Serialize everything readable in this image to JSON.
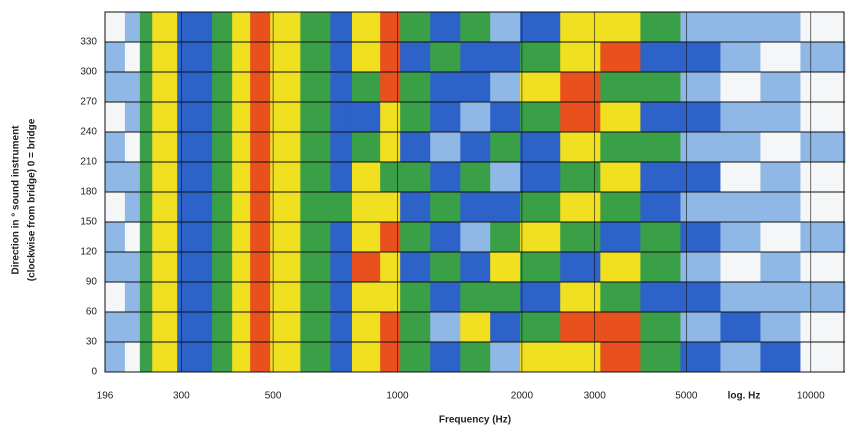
{
  "chart_data": {
    "type": "heatmap",
    "xlabel": "Frequency (Hz)",
    "ylabel": [
      "Direction in ° sound instrument",
      "(clockwise from bridge) 0 = bridge"
    ],
    "x_annotation": "log. Hz",
    "xscale": "log",
    "xlim": [
      196,
      12100
    ],
    "xticks": [
      196,
      300,
      500,
      1000,
      2000,
      3000,
      5000,
      10000
    ],
    "ylim": [
      0,
      360
    ],
    "yticks": [
      0,
      30,
      60,
      90,
      120,
      150,
      180,
      210,
      240,
      270,
      300,
      330
    ],
    "grid": true,
    "xbins": [
      196,
      219,
      238,
      255,
      293,
      356,
      398,
      440,
      492,
      582,
      688,
      776,
      908,
      1015,
      1200,
      1419,
      1676,
      1980,
      2476,
      3096,
      3870,
      4838,
      6045,
      7554,
      9440,
      12100
    ],
    "ybins": [
      0,
      30,
      60,
      90,
      120,
      150,
      180,
      210,
      240,
      270,
      300,
      330,
      360
    ],
    "level_colors": [
      "#f4f6f8",
      "#8fb8e6",
      "#2d62c8",
      "#3aa048",
      "#f0e020",
      "#e8501e"
    ],
    "z": [
      [
        1,
        0,
        3,
        4,
        2,
        3,
        4,
        5,
        4,
        3,
        2,
        4,
        5,
        3,
        2,
        3,
        1,
        4,
        4,
        5,
        3,
        2,
        1,
        2,
        0
      ],
      [
        1,
        1,
        3,
        4,
        2,
        3,
        4,
        5,
        4,
        3,
        2,
        4,
        5,
        3,
        1,
        4,
        2,
        3,
        5,
        5,
        3,
        1,
        2,
        1,
        0
      ],
      [
        0,
        1,
        3,
        4,
        2,
        3,
        4,
        5,
        4,
        3,
        2,
        4,
        4,
        3,
        2,
        3,
        3,
        2,
        4,
        3,
        2,
        2,
        1,
        1,
        1
      ],
      [
        1,
        1,
        3,
        4,
        2,
        3,
        4,
        5,
        4,
        3,
        2,
        5,
        4,
        2,
        3,
        2,
        4,
        3,
        2,
        4,
        3,
        1,
        0,
        1,
        0
      ],
      [
        1,
        0,
        3,
        4,
        2,
        3,
        4,
        5,
        4,
        3,
        2,
        4,
        5,
        3,
        2,
        1,
        3,
        4,
        3,
        2,
        3,
        2,
        1,
        0,
        1
      ],
      [
        0,
        1,
        3,
        4,
        2,
        3,
        4,
        5,
        4,
        3,
        3,
        4,
        4,
        2,
        3,
        2,
        2,
        3,
        4,
        3,
        2,
        1,
        1,
        1,
        0
      ],
      [
        1,
        1,
        3,
        4,
        2,
        3,
        4,
        5,
        4,
        3,
        2,
        4,
        3,
        3,
        2,
        3,
        1,
        2,
        3,
        4,
        2,
        2,
        0,
        1,
        0
      ],
      [
        1,
        0,
        3,
        4,
        2,
        3,
        4,
        5,
        4,
        3,
        2,
        3,
        4,
        2,
        1,
        2,
        3,
        2,
        4,
        3,
        3,
        1,
        1,
        0,
        1
      ],
      [
        0,
        1,
        3,
        4,
        2,
        3,
        4,
        5,
        4,
        3,
        2,
        2,
        4,
        3,
        2,
        1,
        2,
        3,
        5,
        4,
        2,
        2,
        1,
        1,
        0
      ],
      [
        1,
        1,
        3,
        4,
        2,
        3,
        4,
        5,
        4,
        3,
        2,
        3,
        5,
        3,
        2,
        2,
        1,
        4,
        5,
        3,
        3,
        1,
        0,
        1,
        0
      ],
      [
        1,
        0,
        3,
        4,
        2,
        3,
        4,
        5,
        4,
        3,
        2,
        4,
        5,
        2,
        3,
        2,
        2,
        3,
        4,
        5,
        2,
        2,
        1,
        0,
        1
      ],
      [
        0,
        1,
        3,
        4,
        2,
        3,
        4,
        5,
        4,
        3,
        2,
        4,
        5,
        3,
        2,
        3,
        1,
        2,
        4,
        4,
        3,
        1,
        1,
        1,
        0
      ]
    ]
  }
}
